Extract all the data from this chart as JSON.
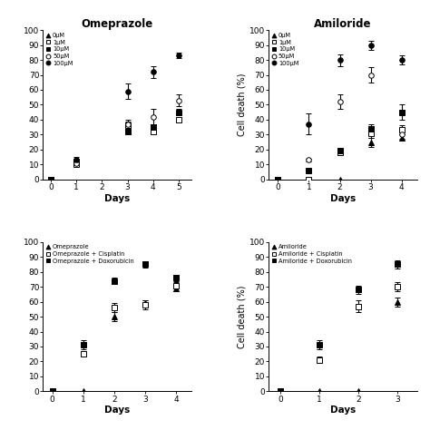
{
  "top_left": {
    "title": "Omeprazole",
    "xlabel": "Days",
    "ylabel": "",
    "xlim": [
      -0.3,
      5.5
    ],
    "ylim": [
      0,
      100
    ],
    "yticks": [
      0,
      10,
      20,
      30,
      40,
      50,
      60,
      70,
      80,
      90,
      100
    ],
    "xticks": [
      0,
      1,
      2,
      3,
      4,
      5
    ],
    "series": [
      {
        "label": "0μM",
        "marker": "^",
        "filled": true,
        "x": [
          0
        ],
        "y": [
          0
        ],
        "yerr": [
          0
        ]
      },
      {
        "label": "1μM",
        "marker": "s",
        "filled": false,
        "x": [
          0,
          1,
          3,
          4,
          5
        ],
        "y": [
          0,
          10,
          36,
          32,
          40
        ],
        "yerr": [
          0,
          1,
          3,
          2,
          2
        ]
      },
      {
        "label": "10μM",
        "marker": "s",
        "filled": true,
        "x": [
          0,
          1,
          3,
          4,
          5
        ],
        "y": [
          0,
          12,
          32,
          35,
          45
        ],
        "yerr": [
          0,
          1,
          2,
          2,
          2
        ]
      },
      {
        "label": "50μM",
        "marker": "o",
        "filled": false,
        "x": [
          0,
          1,
          3,
          4,
          5
        ],
        "y": [
          0,
          11,
          37,
          42,
          53
        ],
        "yerr": [
          0,
          1,
          3,
          5,
          4
        ]
      },
      {
        "label": "100μM",
        "marker": "o",
        "filled": true,
        "x": [
          0,
          1,
          3,
          4,
          5
        ],
        "y": [
          0,
          13,
          59,
          72,
          83
        ],
        "yerr": [
          0,
          2,
          5,
          4,
          2
        ]
      }
    ],
    "legend_markers": [
      "^",
      "s",
      "s",
      "o",
      "o"
    ],
    "legend_filled": [
      true,
      false,
      true,
      false,
      true
    ],
    "legend_labels": [
      "0μM",
      "1μM",
      "10μM",
      "50μM",
      "100μM"
    ]
  },
  "top_right": {
    "title": "Amiloride",
    "xlabel": "Days",
    "ylabel": "Cell death (%)",
    "xlim": [
      -0.3,
      4.5
    ],
    "ylim": [
      0,
      100
    ],
    "yticks": [
      0,
      10,
      20,
      30,
      40,
      50,
      60,
      70,
      80,
      90,
      100
    ],
    "xticks": [
      0,
      1,
      2,
      3,
      4
    ],
    "series": [
      {
        "label": "0μM",
        "marker": "^",
        "filled": true,
        "x": [
          0,
          1,
          2,
          3,
          4
        ],
        "y": [
          0,
          0,
          0,
          25,
          28
        ],
        "yerr": [
          0,
          0,
          0,
          3,
          2
        ]
      },
      {
        "label": "1μM",
        "marker": "s",
        "filled": false,
        "x": [
          0,
          1,
          2,
          3,
          4
        ],
        "y": [
          0,
          0,
          18,
          31,
          33
        ],
        "yerr": [
          0,
          0,
          2,
          3,
          3
        ]
      },
      {
        "label": "10μM",
        "marker": "s",
        "filled": true,
        "x": [
          0,
          1,
          2,
          3,
          4
        ],
        "y": [
          0,
          6,
          19,
          34,
          45
        ],
        "yerr": [
          0,
          1,
          2,
          3,
          5
        ]
      },
      {
        "label": "50μM",
        "marker": "o",
        "filled": false,
        "x": [
          0,
          1,
          2,
          3,
          4
        ],
        "y": [
          0,
          13,
          52,
          70,
          30
        ],
        "yerr": [
          0,
          1,
          5,
          5,
          3
        ]
      },
      {
        "label": "100μM",
        "marker": "o",
        "filled": true,
        "x": [
          0,
          1,
          2,
          3,
          4
        ],
        "y": [
          0,
          37,
          80,
          90,
          80
        ],
        "yerr": [
          0,
          7,
          4,
          3,
          3
        ]
      }
    ],
    "legend_markers": [
      "^",
      "s",
      "s",
      "o",
      "o"
    ],
    "legend_filled": [
      true,
      false,
      true,
      false,
      true
    ],
    "legend_labels": [
      "0μM",
      "1μM",
      "10μM",
      "50μM",
      "100μM"
    ]
  },
  "bottom_left": {
    "title": "",
    "xlabel": "Days",
    "ylabel": "",
    "xlim": [
      -0.3,
      4.5
    ],
    "ylim": [
      0,
      100
    ],
    "yticks": [
      0,
      10,
      20,
      30,
      40,
      50,
      60,
      70,
      80,
      90,
      100
    ],
    "xticks": [
      0,
      1,
      2,
      3,
      4
    ],
    "series": [
      {
        "label": "Omeprazole",
        "marker": "^",
        "filled": true,
        "x": [
          0,
          1,
          2,
          3,
          4
        ],
        "y": [
          0,
          0,
          50,
          59,
          69
        ],
        "yerr": [
          0,
          0,
          3,
          2,
          2
        ]
      },
      {
        "label": "Omeprazole + Cisplatin",
        "marker": "s",
        "filled": false,
        "x": [
          0,
          1,
          2,
          3,
          4
        ],
        "y": [
          0,
          25,
          56,
          58,
          71
        ],
        "yerr": [
          0,
          2,
          3,
          3,
          2
        ]
      },
      {
        "label": "Omeprazole + Doxorubicin",
        "marker": "s",
        "filled": true,
        "x": [
          0,
          1,
          2,
          3,
          4
        ],
        "y": [
          0,
          31,
          74,
          85,
          76
        ],
        "yerr": [
          0,
          3,
          2,
          2,
          2
        ]
      }
    ],
    "legend_markers": [
      "^",
      "s",
      "s"
    ],
    "legend_filled": [
      true,
      false,
      true
    ],
    "legend_labels": [
      "Omeprazole",
      "Omeprazole + Cisplatin",
      "Omeprazole + Doxorubicin"
    ]
  },
  "bottom_right": {
    "title": "",
    "xlabel": "Days",
    "ylabel": "Cell death (%)",
    "xlim": [
      -0.3,
      3.5
    ],
    "ylim": [
      0,
      100
    ],
    "yticks": [
      0,
      10,
      20,
      30,
      40,
      50,
      60,
      70,
      80,
      90,
      100
    ],
    "xticks": [
      0,
      1,
      2,
      3
    ],
    "series": [
      {
        "label": "Amiloride",
        "marker": "^",
        "filled": true,
        "x": [
          0,
          1,
          2,
          3
        ],
        "y": [
          0,
          0,
          0,
          60
        ],
        "yerr": [
          0,
          0,
          0,
          3
        ]
      },
      {
        "label": "Amiloride + Cisplatin",
        "marker": "s",
        "filled": false,
        "x": [
          0,
          1,
          2,
          3
        ],
        "y": [
          0,
          21,
          57,
          70
        ],
        "yerr": [
          0,
          2,
          4,
          3
        ]
      },
      {
        "label": "Amiloride + Doxorubicin",
        "marker": "s",
        "filled": true,
        "x": [
          0,
          1,
          2,
          3
        ],
        "y": [
          0,
          31,
          68,
          85
        ],
        "yerr": [
          0,
          3,
          3,
          3
        ]
      }
    ],
    "legend_markers": [
      "^",
      "s",
      "s"
    ],
    "legend_filled": [
      true,
      false,
      true
    ],
    "legend_labels": [
      "Amiloride",
      "Amiloride + Cisplatin",
      "Amiloride + Doxorubicin"
    ]
  }
}
